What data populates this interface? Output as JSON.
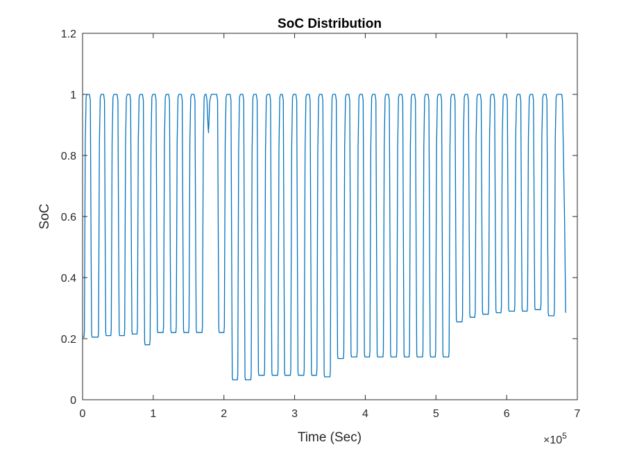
{
  "chart_data": {
    "type": "line",
    "title": "SoC Distribution",
    "xlabel": "Time (Sec)",
    "ylabel": "SoC",
    "x_exponent_base": "×10",
    "x_exponent_power": "5",
    "xlim": [
      0,
      7
    ],
    "ylim": [
      0,
      1.2
    ],
    "x_ticks": [
      0,
      1,
      2,
      3,
      4,
      5,
      6,
      7
    ],
    "x_tick_labels": [
      "0",
      "1",
      "2",
      "3",
      "4",
      "5",
      "6",
      "7"
    ],
    "y_ticks": [
      0,
      0.2,
      0.4,
      0.6,
      0.8,
      1.0,
      1.2
    ],
    "y_tick_labels": [
      "0",
      "0.2",
      "0.4",
      "0.6",
      "0.8",
      "1",
      "1.2"
    ],
    "grid": false,
    "series_color": "#0072BD",
    "series": [
      {
        "x_start": 0.0,
        "cycles": [
          {
            "t_rise": 0.02,
            "t_fall": 0.11,
            "min": 0.205
          },
          {
            "t_rise": 0.22,
            "t_fall": 0.31,
            "min": 0.21
          },
          {
            "t_rise": 0.4,
            "t_fall": 0.5,
            "min": 0.21
          },
          {
            "t_rise": 0.59,
            "t_fall": 0.68,
            "min": 0.215
          },
          {
            "t_rise": 0.77,
            "t_fall": 0.86,
            "min": 0.18
          },
          {
            "t_rise": 0.95,
            "t_fall": 1.04,
            "min": 0.22
          },
          {
            "t_rise": 1.14,
            "t_fall": 1.23,
            "min": 0.22
          },
          {
            "t_rise": 1.32,
            "t_fall": 1.41,
            "min": 0.22
          },
          {
            "t_rise": 1.5,
            "t_fall": 1.59,
            "min": 0.22
          },
          {
            "t_rise": 1.69,
            "t_fall": 1.76,
            "min": 0.875
          },
          {
            "t_rise": 1.78,
            "t_fall": 1.91,
            "min": 0.22
          },
          {
            "t_rise": 2.0,
            "t_fall": 2.1,
            "min": 0.065
          },
          {
            "t_rise": 2.19,
            "t_fall": 2.28,
            "min": 0.065
          },
          {
            "t_rise": 2.38,
            "t_fall": 2.47,
            "min": 0.08
          },
          {
            "t_rise": 2.57,
            "t_fall": 2.66,
            "min": 0.08
          },
          {
            "t_rise": 2.76,
            "t_fall": 2.84,
            "min": 0.08
          },
          {
            "t_rise": 2.94,
            "t_fall": 3.03,
            "min": 0.08
          },
          {
            "t_rise": 3.13,
            "t_fall": 3.22,
            "min": 0.08
          },
          {
            "t_rise": 3.31,
            "t_fall": 3.4,
            "min": 0.075
          },
          {
            "t_rise": 3.5,
            "t_fall": 3.59,
            "min": 0.135
          },
          {
            "t_rise": 3.69,
            "t_fall": 3.78,
            "min": 0.14
          },
          {
            "t_rise": 3.88,
            "t_fall": 3.97,
            "min": 0.14
          },
          {
            "t_rise": 4.06,
            "t_fall": 4.15,
            "min": 0.14
          },
          {
            "t_rise": 4.25,
            "t_fall": 4.34,
            "min": 0.14
          },
          {
            "t_rise": 4.44,
            "t_fall": 4.53,
            "min": 0.14
          },
          {
            "t_rise": 4.62,
            "t_fall": 4.71,
            "min": 0.14
          },
          {
            "t_rise": 4.81,
            "t_fall": 4.9,
            "min": 0.14
          },
          {
            "t_rise": 4.99,
            "t_fall": 5.08,
            "min": 0.14
          },
          {
            "t_rise": 5.18,
            "t_fall": 5.27,
            "min": 0.255
          },
          {
            "t_rise": 5.37,
            "t_fall": 5.46,
            "min": 0.27
          },
          {
            "t_rise": 5.55,
            "t_fall": 5.64,
            "min": 0.28
          },
          {
            "t_rise": 5.74,
            "t_fall": 5.83,
            "min": 0.285
          },
          {
            "t_rise": 5.92,
            "t_fall": 6.01,
            "min": 0.29
          },
          {
            "t_rise": 6.11,
            "t_fall": 6.2,
            "min": 0.29
          },
          {
            "t_rise": 6.29,
            "t_fall": 6.38,
            "min": 0.295
          },
          {
            "t_rise": 6.48,
            "t_fall": 6.57,
            "min": 0.275
          },
          {
            "t_rise": 6.67,
            "t_fall": null,
            "min": 0.285
          }
        ]
      }
    ]
  }
}
